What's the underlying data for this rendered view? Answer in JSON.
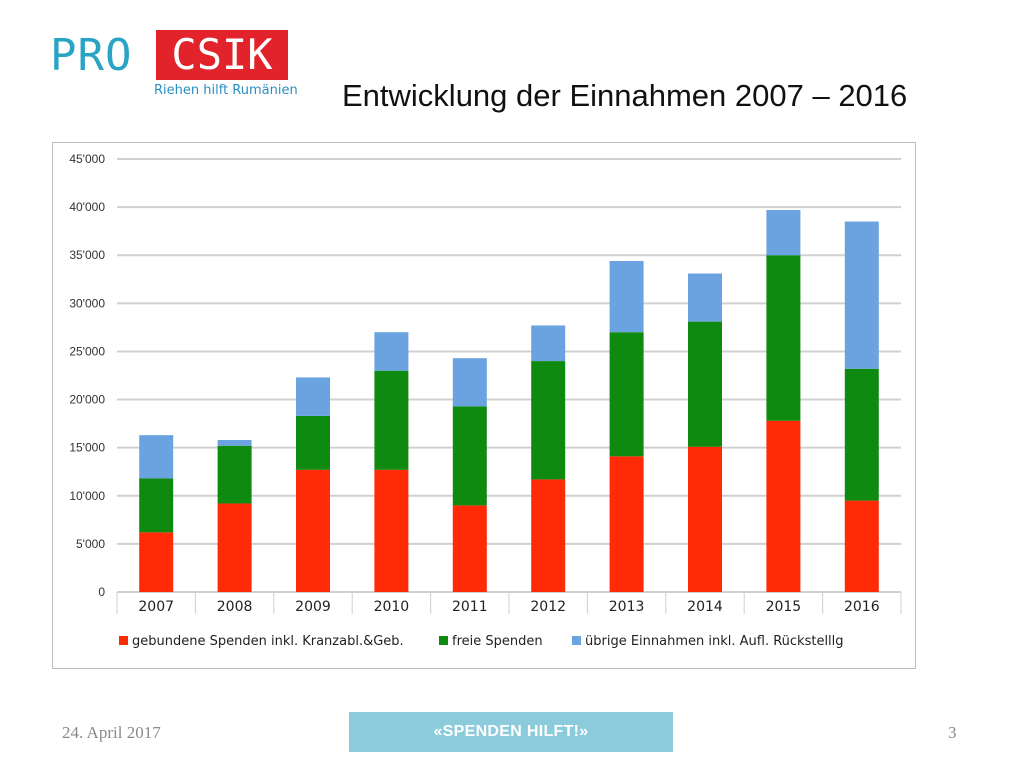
{
  "logo": {
    "pro": "PRO",
    "csik": "CSIK",
    "tagline": "Riehen hilft Rumänien"
  },
  "title": "Entwicklung der Einnahmen 2007 – 2016",
  "footer": {
    "date": "24. April 2017",
    "button_label": "«SPENDEN HILFT!»",
    "page_number": "3"
  },
  "colors": {
    "red": "#ff2a06",
    "green": "#0f8a10",
    "blue": "#6aa3e0",
    "grid": "#d0d0d0"
  },
  "chart_data": {
    "type": "bar",
    "stacked": true,
    "categories": [
      "2007",
      "2008",
      "2009",
      "2010",
      "2011",
      "2012",
      "2013",
      "2014",
      "2015",
      "2016"
    ],
    "series": [
      {
        "name": "gebundene Spenden inkl. Kranzabl.&Geb.",
        "color": "#ff2a06",
        "values": [
          6200,
          9200,
          12700,
          12700,
          9000,
          11700,
          14100,
          15100,
          17800,
          9500
        ]
      },
      {
        "name": "freie Spenden",
        "color": "#0f8a10",
        "values": [
          5600,
          6000,
          5600,
          10300,
          10300,
          12300,
          12900,
          13000,
          17200,
          13700
        ]
      },
      {
        "name": "übrige Einnahmen inkl. Aufl. Rückstelllg",
        "color": "#6aa3e0",
        "values": [
          4500,
          600,
          4000,
          4000,
          5000,
          3700,
          7400,
          5000,
          4700,
          15300
        ]
      }
    ],
    "y_ticks": [
      "0",
      "5'000",
      "10'000",
      "15'000",
      "20'000",
      "25'000",
      "30'000",
      "35'000",
      "40'000",
      "45'000"
    ],
    "ylim": [
      0,
      45000
    ],
    "grid": true,
    "legend_position": "bottom"
  }
}
